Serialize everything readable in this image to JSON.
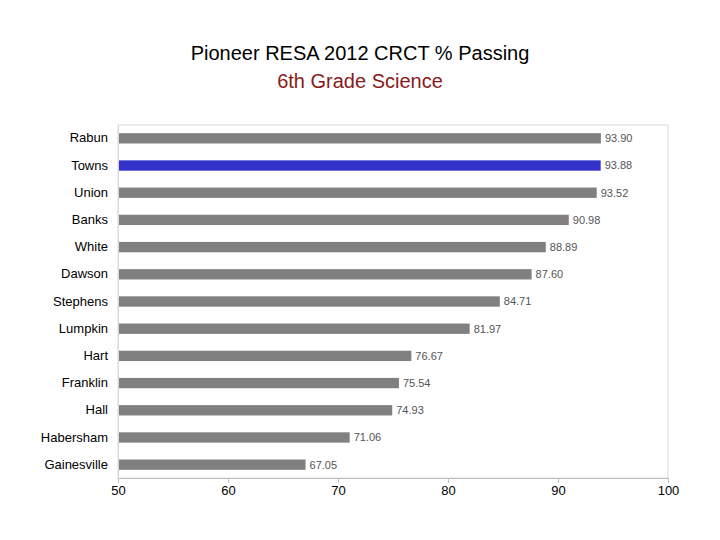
{
  "chart_data": {
    "type": "bar",
    "orientation": "horizontal",
    "title": "Pioneer RESA 2012 CRCT % Passing",
    "subtitle": "6th Grade Science",
    "categories": [
      "Rabun",
      "Towns",
      "Union",
      "Banks",
      "White",
      "Dawson",
      "Stephens",
      "Lumpkin",
      "Hart",
      "Franklin",
      "Hall",
      "Habersham",
      "Gainesville"
    ],
    "values": [
      93.9,
      93.88,
      93.52,
      90.98,
      88.89,
      87.6,
      84.71,
      81.97,
      76.67,
      75.54,
      74.93,
      71.06,
      67.05
    ],
    "value_labels": [
      "93.90",
      "93.88",
      "93.52",
      "90.98",
      "88.89",
      "87.60",
      "84.71",
      "81.97",
      "76.67",
      "75.54",
      "74.93",
      "71.06",
      "67.05"
    ],
    "colors": [
      "#808080",
      "#3333cc",
      "#808080",
      "#808080",
      "#808080",
      "#808080",
      "#808080",
      "#808080",
      "#808080",
      "#808080",
      "#808080",
      "#808080",
      "#808080"
    ],
    "xlim": [
      50,
      100
    ],
    "xticks": [
      50,
      60,
      70,
      80,
      90,
      100
    ],
    "grid": false,
    "data_labels": true
  }
}
